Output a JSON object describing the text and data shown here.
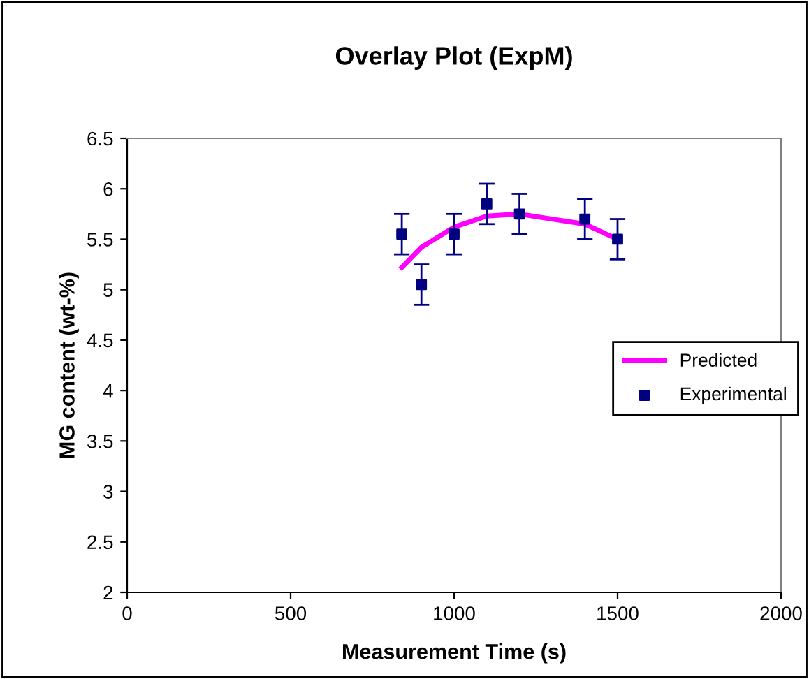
{
  "chart_data": {
    "type": "scatter",
    "title": "Overlay Plot (ExpM)",
    "xlabel": "Measurement Time (s)",
    "ylabel": "MG content (wt-%)",
    "series": [
      {
        "name": "Predicted",
        "type": "line",
        "color": "#ff00ff",
        "x": [
          840,
          900,
          1000,
          1100,
          1200,
          1400,
          1500
        ],
        "values": [
          5.22,
          5.42,
          5.62,
          5.73,
          5.75,
          5.65,
          5.5
        ]
      },
      {
        "name": "Experimental",
        "color": "#000080",
        "marker": "square",
        "x": [
          840,
          900,
          1000,
          1100,
          1200,
          1400,
          1500
        ],
        "values": [
          5.55,
          5.05,
          5.55,
          5.85,
          5.75,
          5.7,
          5.5
        ],
        "errors": [
          0.2,
          0.2,
          0.2,
          0.2,
          0.2,
          0.2,
          0.2
        ]
      }
    ],
    "xlim": [
      0,
      2000
    ],
    "xticks": [
      0,
      500,
      1000,
      1500,
      2000
    ],
    "ylim": [
      2,
      6.5
    ],
    "yticks": [
      2,
      2.5,
      3,
      3.5,
      4,
      4.5,
      5,
      5.5,
      6,
      6.5
    ],
    "grid": false,
    "legend": "right"
  }
}
